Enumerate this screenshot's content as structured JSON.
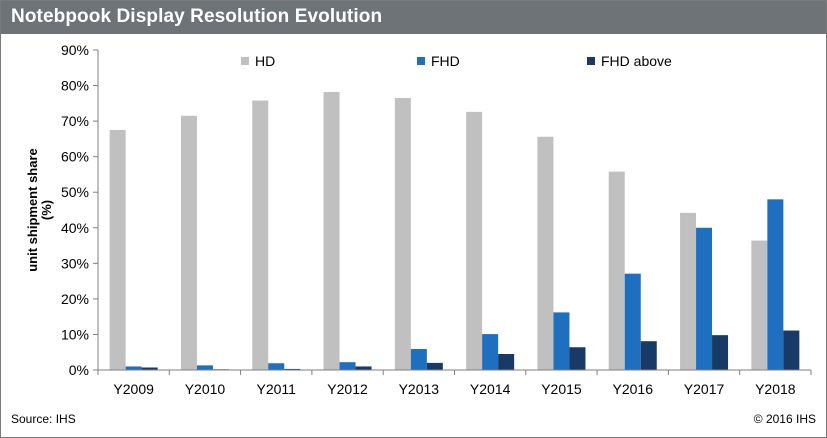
{
  "header": {
    "title": "Notebpook Display Resolution Evolution"
  },
  "footer": {
    "source": "Source: IHS",
    "copyright": "© 2016 IHS"
  },
  "chart_data": {
    "type": "bar",
    "title": "Notebpook Display Resolution Evolution",
    "xlabel": "",
    "ylabel": "unit shipment share (%)",
    "ylim": [
      0,
      90
    ],
    "yticks": [
      0,
      10,
      20,
      30,
      40,
      50,
      60,
      70,
      80,
      90
    ],
    "ytick_suffix": "%",
    "grid": false,
    "legend_position": "top",
    "categories": [
      "Y2009",
      "Y2010",
      "Y2011",
      "Y2012",
      "Y2013",
      "Y2014",
      "Y2015",
      "Y2016",
      "Y2017",
      "Y2018"
    ],
    "series": [
      {
        "name": "HD",
        "color": "#c0c0c0",
        "values": [
          67.5,
          71.5,
          75.8,
          78.2,
          76.5,
          72.6,
          65.6,
          55.8,
          44.2,
          36.4
        ]
      },
      {
        "name": "FHD",
        "color": "#1f6fc0",
        "values": [
          1.0,
          1.3,
          1.9,
          2.2,
          5.9,
          10.1,
          16.2,
          27.1,
          40.0,
          48.0
        ]
      },
      {
        "name": "FHD above",
        "color": "#173a66",
        "values": [
          0.7,
          0.2,
          0.3,
          1.0,
          2.0,
          4.5,
          6.4,
          8.1,
          9.8,
          11.1
        ]
      }
    ]
  }
}
